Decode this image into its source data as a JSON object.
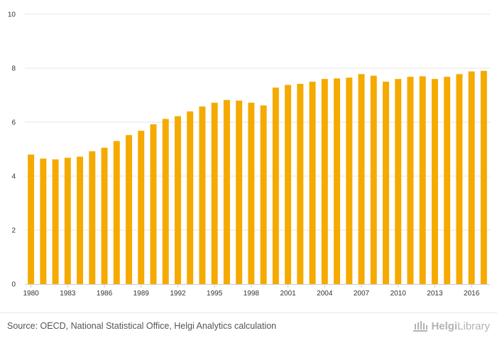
{
  "chart_data": {
    "type": "bar",
    "color": "#f5aa00",
    "x_tick_labels": [
      "1980",
      "1983",
      "1986",
      "1989",
      "1992",
      "1995",
      "1998",
      "2001",
      "2004",
      "2007",
      "2010",
      "2013",
      "2016"
    ],
    "categories": [
      "1980",
      "1981",
      "1982",
      "1983",
      "1984",
      "1985",
      "1986",
      "1987",
      "1988",
      "1989",
      "1990",
      "1991",
      "1992",
      "1993",
      "1994",
      "1995",
      "1996",
      "1997",
      "1998",
      "1999",
      "2000",
      "2001",
      "2002",
      "2003",
      "2004",
      "2005",
      "2006",
      "2007",
      "2008",
      "2009",
      "2010",
      "2011",
      "2012",
      "2013",
      "2014",
      "2015",
      "2016",
      "2017"
    ],
    "values": [
      4.8,
      4.65,
      4.62,
      4.68,
      4.72,
      4.92,
      5.05,
      5.3,
      5.52,
      5.68,
      5.92,
      6.12,
      6.22,
      6.4,
      6.58,
      6.72,
      6.82,
      6.8,
      6.72,
      6.62,
      7.28,
      7.38,
      7.42,
      7.5,
      7.6,
      7.62,
      7.65,
      7.78,
      7.72,
      7.5,
      7.6,
      7.68,
      7.7,
      7.6,
      7.68,
      7.78,
      7.88,
      7.9
    ],
    "y_ticks": [
      0,
      2,
      4,
      6,
      8,
      10
    ],
    "ylim": [
      0,
      10
    ],
    "grid": "horizontal",
    "title": "",
    "xlabel": "",
    "ylabel": ""
  },
  "footer": {
    "source": "Source: OECD, National Statistical Office, Helgi Analytics calculation",
    "logo_bold": "Helgi",
    "logo_light": "Library"
  }
}
